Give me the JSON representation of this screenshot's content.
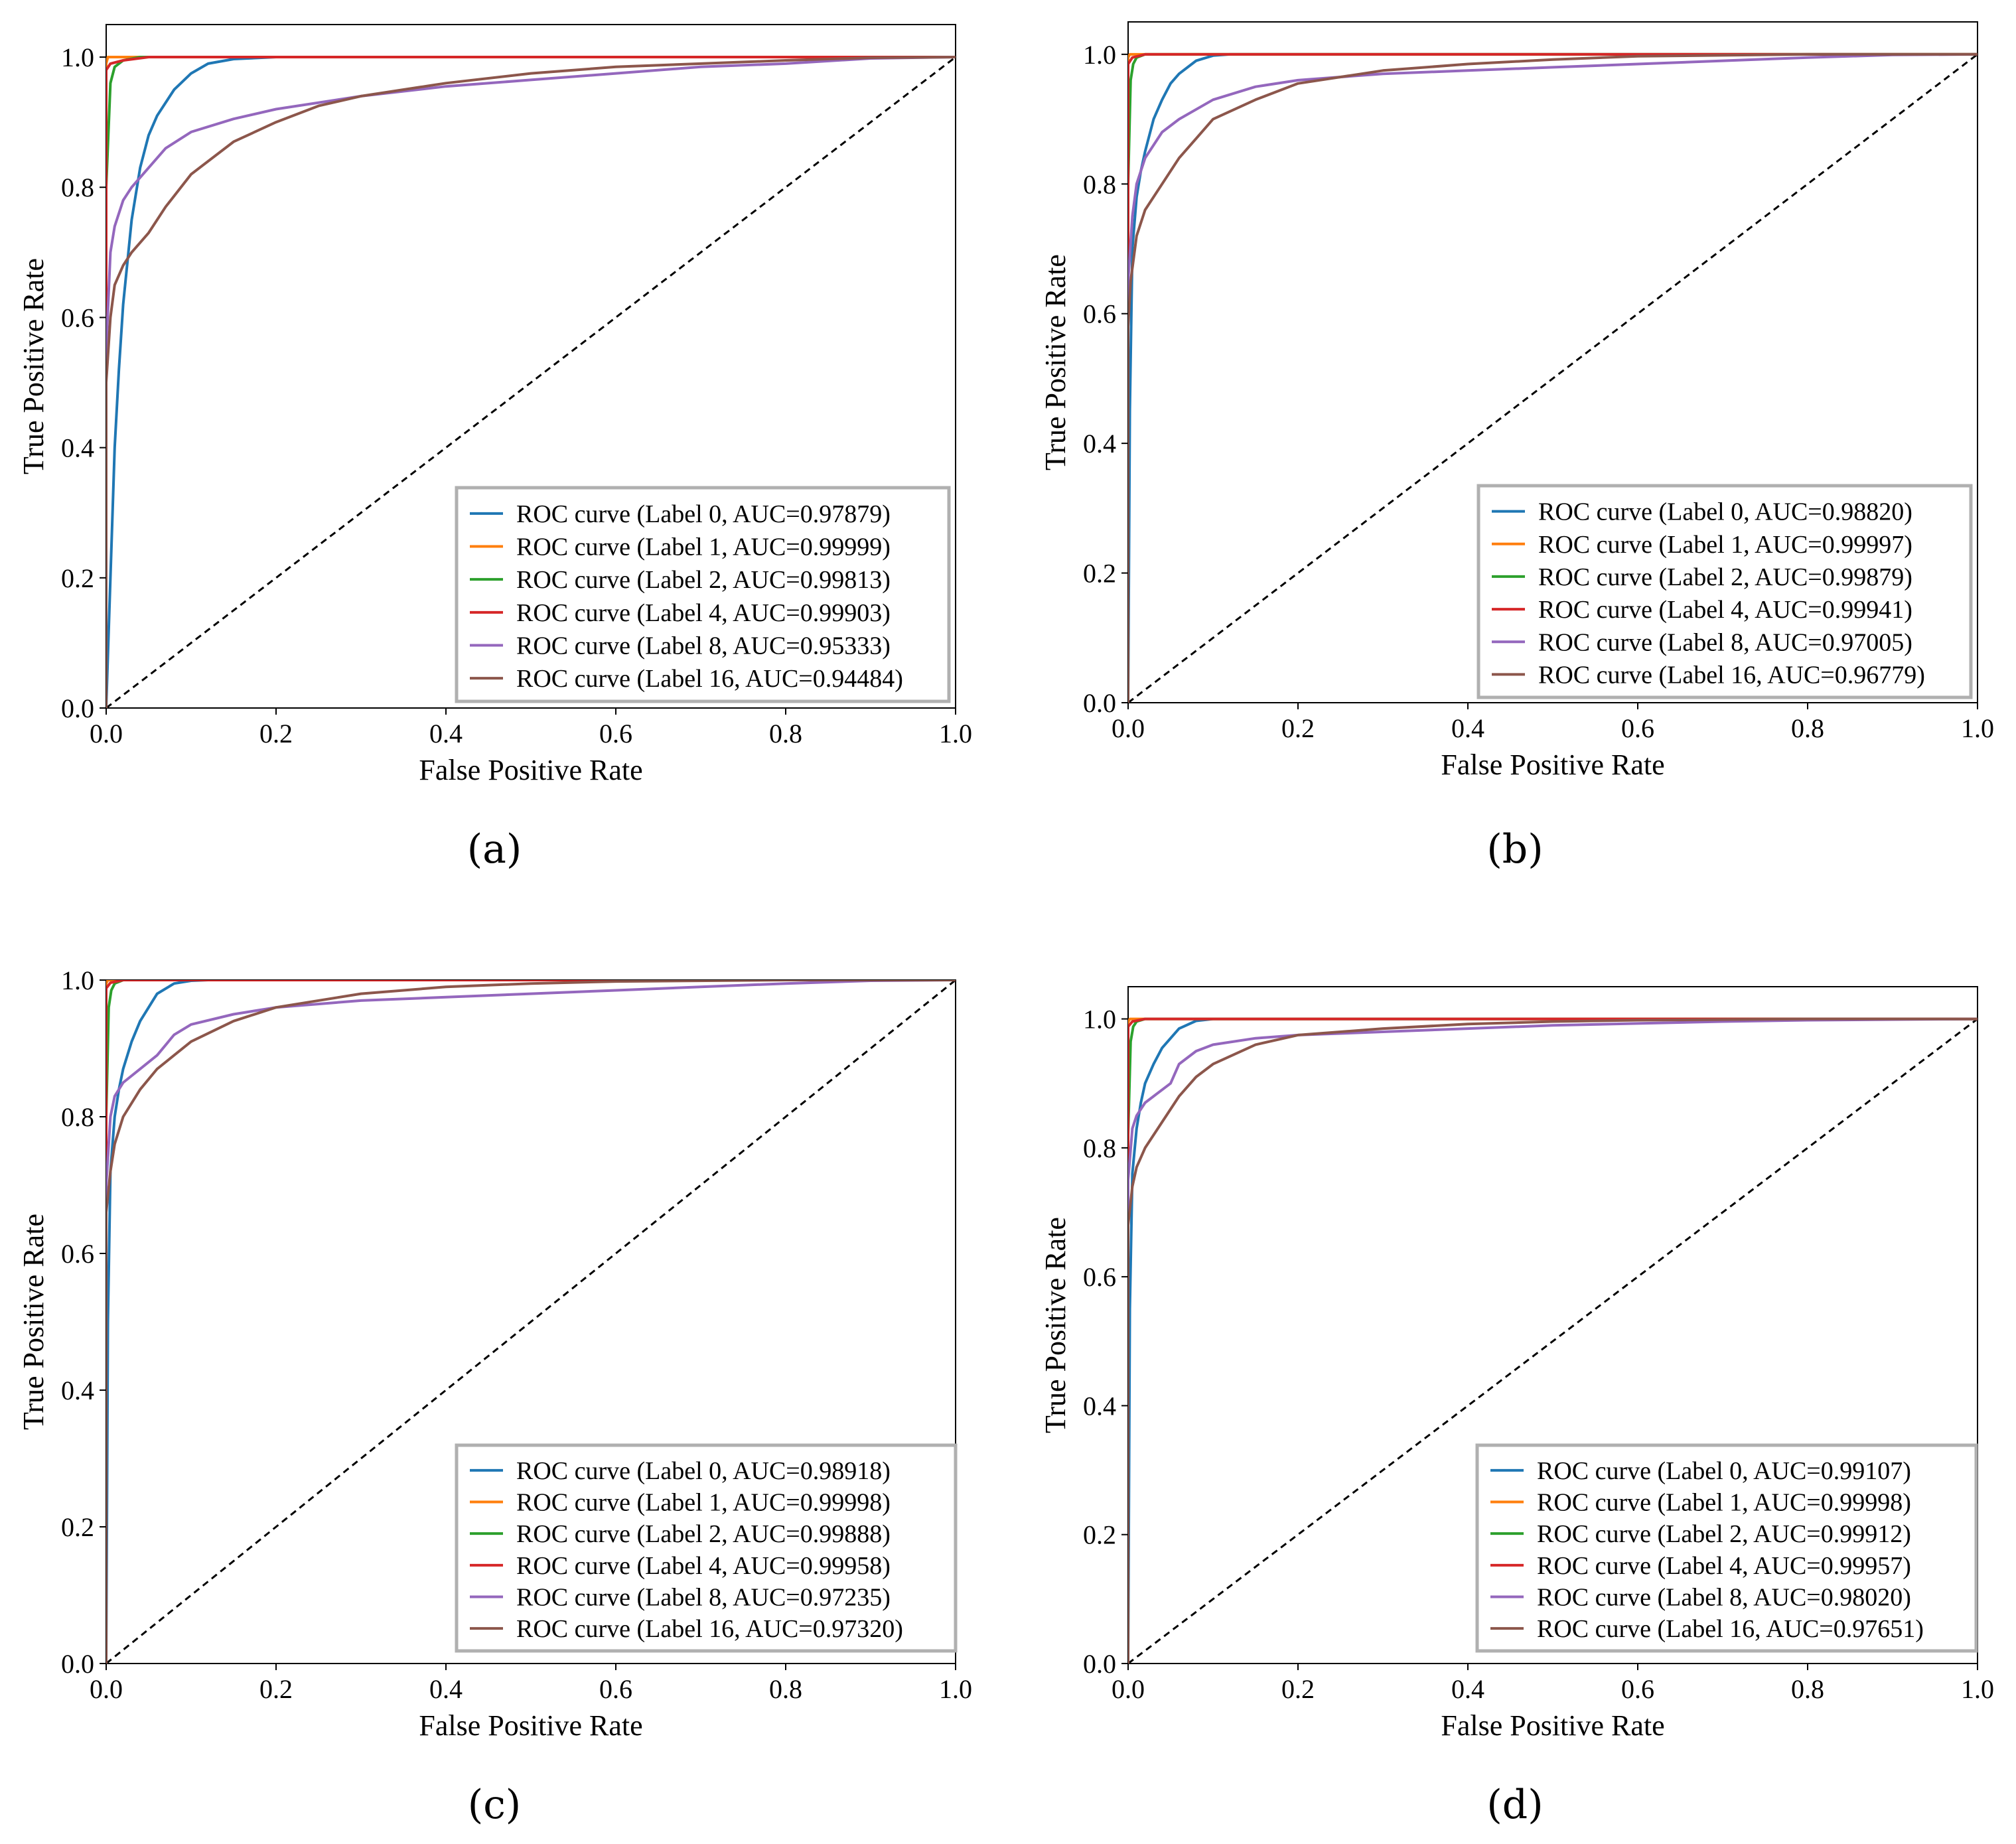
{
  "figure": {
    "captions": [
      "(a)",
      "(b)",
      "(c)",
      "(d)"
    ]
  },
  "chart_data": [
    {
      "type": "line",
      "panel": "a",
      "title": "",
      "xlabel": "False Positive Rate",
      "ylabel": "True Positive Rate",
      "xlim": [
        0.0,
        1.0
      ],
      "ylim": [
        0.0,
        1.05
      ],
      "xticks": [
        "0.0",
        "0.2",
        "0.4",
        "0.6",
        "0.8",
        "1.0"
      ],
      "yticks": [
        "0.0",
        "0.2",
        "0.4",
        "0.6",
        "0.8",
        "1.0"
      ],
      "legend_position": "lower-right",
      "series": [
        {
          "name": "ROC curve (Label 0, AUC=0.97879)",
          "color": "#1f77b4",
          "x": [
            0,
            0.005,
            0.01,
            0.015,
            0.02,
            0.03,
            0.04,
            0.05,
            0.06,
            0.08,
            0.1,
            0.12,
            0.15,
            0.2,
            1.0
          ],
          "y": [
            0,
            0.2,
            0.4,
            0.52,
            0.62,
            0.75,
            0.83,
            0.88,
            0.91,
            0.95,
            0.975,
            0.99,
            0.997,
            1.0,
            1.0
          ]
        },
        {
          "name": "ROC curve (Label 1, AUC=0.99999)",
          "color": "#ff7f0e",
          "x": [
            0,
            0.0,
            0.002,
            1.0
          ],
          "y": [
            0,
            0.99,
            1.0,
            1.0
          ]
        },
        {
          "name": "ROC curve (Label 2, AUC=0.99813)",
          "color": "#2ca02c",
          "x": [
            0,
            0.0,
            0.005,
            0.01,
            0.02,
            0.04,
            1.0
          ],
          "y": [
            0,
            0.8,
            0.96,
            0.985,
            0.995,
            1.0,
            1.0
          ]
        },
        {
          "name": "ROC curve (Label 4, AUC=0.99903)",
          "color": "#d62728",
          "x": [
            0,
            0.0,
            0.005,
            0.02,
            0.05,
            1.0
          ],
          "y": [
            0,
            0.98,
            0.99,
            0.995,
            1.0,
            1.0
          ]
        },
        {
          "name": "ROC curve (Label 8, AUC=0.95333)",
          "color": "#9467bd",
          "x": [
            0,
            0.0,
            0.005,
            0.01,
            0.02,
            0.03,
            0.05,
            0.07,
            0.1,
            0.15,
            0.2,
            0.3,
            0.4,
            0.5,
            0.6,
            0.7,
            0.8,
            0.9,
            1.0
          ],
          "y": [
            0,
            0.55,
            0.7,
            0.74,
            0.78,
            0.8,
            0.83,
            0.86,
            0.885,
            0.905,
            0.92,
            0.94,
            0.955,
            0.965,
            0.975,
            0.985,
            0.99,
            0.998,
            1.0
          ]
        },
        {
          "name": "ROC curve (Label 16, AUC=0.94484)",
          "color": "#8c564b",
          "x": [
            0,
            0.0,
            0.005,
            0.01,
            0.02,
            0.03,
            0.05,
            0.07,
            0.1,
            0.15,
            0.2,
            0.25,
            0.3,
            0.4,
            0.5,
            0.6,
            0.7,
            0.8,
            0.9,
            1.0
          ],
          "y": [
            0,
            0.5,
            0.6,
            0.65,
            0.68,
            0.7,
            0.73,
            0.77,
            0.82,
            0.87,
            0.9,
            0.925,
            0.94,
            0.96,
            0.975,
            0.985,
            0.99,
            0.995,
            0.999,
            1.0
          ]
        }
      ]
    },
    {
      "type": "line",
      "panel": "b",
      "title": "",
      "xlabel": "False Positive Rate",
      "ylabel": "True Positive Rate",
      "xlim": [
        0.0,
        1.0
      ],
      "ylim": [
        0.0,
        1.05
      ],
      "xticks": [
        "0.0",
        "0.2",
        "0.4",
        "0.6",
        "0.8",
        "1.0"
      ],
      "yticks": [
        "0.0",
        "0.2",
        "0.4",
        "0.6",
        "0.8",
        "1.0"
      ],
      "legend_position": "lower-right",
      "series": [
        {
          "name": "ROC curve (Label 0, AUC=0.98820)",
          "color": "#1f77b4",
          "x": [
            0,
            0.002,
            0.005,
            0.01,
            0.015,
            0.02,
            0.03,
            0.04,
            0.05,
            0.06,
            0.08,
            0.1,
            0.12,
            1.0
          ],
          "y": [
            0,
            0.45,
            0.7,
            0.78,
            0.82,
            0.85,
            0.9,
            0.93,
            0.955,
            0.97,
            0.99,
            0.998,
            1.0,
            1.0
          ]
        },
        {
          "name": "ROC curve (Label 1, AUC=0.99997)",
          "color": "#ff7f0e",
          "x": [
            0,
            0.0,
            0.002,
            1.0
          ],
          "y": [
            0,
            0.995,
            1.0,
            1.0
          ]
        },
        {
          "name": "ROC curve (Label 2, AUC=0.99879)",
          "color": "#2ca02c",
          "x": [
            0,
            0.0,
            0.003,
            0.006,
            0.01,
            0.02,
            1.0
          ],
          "y": [
            0,
            0.8,
            0.96,
            0.985,
            0.995,
            1.0,
            1.0
          ]
        },
        {
          "name": "ROC curve (Label 4, AUC=0.99941)",
          "color": "#d62728",
          "x": [
            0,
            0.0,
            0.005,
            0.02,
            1.0
          ],
          "y": [
            0,
            0.985,
            0.995,
            1.0,
            1.0
          ]
        },
        {
          "name": "ROC curve (Label 8, AUC=0.97005)",
          "color": "#9467bd",
          "x": [
            0,
            0.0,
            0.005,
            0.01,
            0.02,
            0.04,
            0.06,
            0.1,
            0.15,
            0.2,
            0.3,
            0.4,
            0.5,
            0.6,
            0.7,
            0.8,
            0.9,
            1.0
          ],
          "y": [
            0,
            0.65,
            0.75,
            0.8,
            0.84,
            0.88,
            0.9,
            0.93,
            0.95,
            0.96,
            0.97,
            0.975,
            0.98,
            0.985,
            0.99,
            0.995,
            0.999,
            1.0
          ]
        },
        {
          "name": "ROC curve (Label 16, AUC=0.96779)",
          "color": "#8c564b",
          "x": [
            0,
            0.0,
            0.003,
            0.01,
            0.02,
            0.04,
            0.06,
            0.08,
            0.1,
            0.15,
            0.2,
            0.3,
            0.4,
            0.5,
            0.6,
            0.8,
            1.0
          ],
          "y": [
            0,
            0.58,
            0.65,
            0.72,
            0.76,
            0.8,
            0.84,
            0.87,
            0.9,
            0.93,
            0.955,
            0.975,
            0.985,
            0.992,
            0.997,
            1.0,
            1.0
          ]
        }
      ]
    },
    {
      "type": "line",
      "panel": "c",
      "title": "",
      "xlabel": "False Positive Rate",
      "ylabel": "True Positive Rate",
      "xlim": [
        0.0,
        1.0
      ],
      "ylim": [
        0.0,
        1.0
      ],
      "xticks": [
        "0.0",
        "0.2",
        "0.4",
        "0.6",
        "0.8",
        "1.0"
      ],
      "yticks": [
        "0.0",
        "0.2",
        "0.4",
        "0.6",
        "0.8",
        "1.0"
      ],
      "legend_position": "lower-right",
      "series": [
        {
          "name": "ROC curve (Label 0, AUC=0.98918)",
          "color": "#1f77b4",
          "x": [
            0,
            0.002,
            0.005,
            0.01,
            0.015,
            0.02,
            0.03,
            0.04,
            0.05,
            0.06,
            0.08,
            0.1,
            0.12,
            1.0
          ],
          "y": [
            0,
            0.5,
            0.72,
            0.8,
            0.84,
            0.87,
            0.91,
            0.94,
            0.96,
            0.98,
            0.995,
            0.999,
            1.0,
            1.0
          ]
        },
        {
          "name": "ROC curve (Label 1, AUC=0.99998)",
          "color": "#ff7f0e",
          "x": [
            0,
            0.0,
            0.002,
            1.0
          ],
          "y": [
            0,
            0.995,
            1.0,
            1.0
          ]
        },
        {
          "name": "ROC curve (Label 2, AUC=0.99888)",
          "color": "#2ca02c",
          "x": [
            0,
            0.0,
            0.003,
            0.006,
            0.01,
            0.02,
            1.0
          ],
          "y": [
            0,
            0.8,
            0.96,
            0.985,
            0.995,
            1.0,
            1.0
          ]
        },
        {
          "name": "ROC curve (Label 4, AUC=0.99958)",
          "color": "#d62728",
          "x": [
            0,
            0.0,
            0.005,
            0.02,
            1.0
          ],
          "y": [
            0,
            0.988,
            0.996,
            1.0,
            1.0
          ]
        },
        {
          "name": "ROC curve (Label 8, AUC=0.97235)",
          "color": "#9467bd",
          "x": [
            0,
            0.0,
            0.005,
            0.01,
            0.02,
            0.04,
            0.06,
            0.08,
            0.1,
            0.15,
            0.2,
            0.3,
            0.4,
            0.5,
            0.6,
            0.7,
            0.8,
            0.9,
            1.0
          ],
          "y": [
            0,
            0.7,
            0.8,
            0.83,
            0.85,
            0.87,
            0.89,
            0.92,
            0.935,
            0.95,
            0.96,
            0.97,
            0.975,
            0.98,
            0.985,
            0.99,
            0.995,
            0.999,
            1.0
          ]
        },
        {
          "name": "ROC curve (Label 16, AUC=0.97320)",
          "color": "#8c564b",
          "x": [
            0,
            0.0,
            0.005,
            0.01,
            0.02,
            0.04,
            0.06,
            0.08,
            0.1,
            0.15,
            0.2,
            0.3,
            0.4,
            0.5,
            0.6,
            0.8,
            1.0
          ],
          "y": [
            0,
            0.66,
            0.72,
            0.76,
            0.8,
            0.84,
            0.87,
            0.89,
            0.91,
            0.94,
            0.96,
            0.98,
            0.99,
            0.995,
            0.998,
            1.0,
            1.0
          ]
        }
      ]
    },
    {
      "type": "line",
      "panel": "d",
      "title": "",
      "xlabel": "False Positive Rate",
      "ylabel": "True Positive Rate",
      "xlim": [
        0.0,
        1.0
      ],
      "ylim": [
        0.0,
        1.05
      ],
      "xticks": [
        "0.0",
        "0.2",
        "0.4",
        "0.6",
        "0.8",
        "1.0"
      ],
      "yticks": [
        "0.0",
        "0.2",
        "0.4",
        "0.6",
        "0.8",
        "1.0"
      ],
      "legend_position": "lower-right",
      "series": [
        {
          "name": "ROC curve (Label 0, AUC=0.99107)",
          "color": "#1f77b4",
          "x": [
            0,
            0.002,
            0.005,
            0.01,
            0.015,
            0.02,
            0.03,
            0.04,
            0.05,
            0.06,
            0.08,
            0.1,
            1.0
          ],
          "y": [
            0,
            0.55,
            0.76,
            0.83,
            0.87,
            0.9,
            0.93,
            0.955,
            0.97,
            0.985,
            0.997,
            1.0,
            1.0
          ]
        },
        {
          "name": "ROC curve (Label 1, AUC=0.99998)",
          "color": "#ff7f0e",
          "x": [
            0,
            0.0,
            0.002,
            1.0
          ],
          "y": [
            0,
            0.995,
            1.0,
            1.0
          ]
        },
        {
          "name": "ROC curve (Label 2, AUC=0.99912)",
          "color": "#2ca02c",
          "x": [
            0,
            0.0,
            0.003,
            0.006,
            0.01,
            0.02,
            1.0
          ],
          "y": [
            0,
            0.82,
            0.965,
            0.988,
            0.996,
            1.0,
            1.0
          ]
        },
        {
          "name": "ROC curve (Label 4, AUC=0.99957)",
          "color": "#d62728",
          "x": [
            0,
            0.0,
            0.005,
            0.02,
            1.0
          ],
          "y": [
            0,
            0.988,
            0.996,
            1.0,
            1.0
          ]
        },
        {
          "name": "ROC curve (Label 8, AUC=0.98020)",
          "color": "#9467bd",
          "x": [
            0,
            0.0,
            0.005,
            0.01,
            0.02,
            0.03,
            0.05,
            0.06,
            0.08,
            0.1,
            0.15,
            0.2,
            0.3,
            0.4,
            0.5,
            0.6,
            0.7,
            0.8,
            0.9,
            1.0
          ],
          "y": [
            0,
            0.75,
            0.83,
            0.85,
            0.87,
            0.88,
            0.9,
            0.93,
            0.95,
            0.96,
            0.97,
            0.975,
            0.98,
            0.985,
            0.99,
            0.993,
            0.996,
            0.998,
            0.999,
            1.0
          ]
        },
        {
          "name": "ROC curve (Label 16, AUC=0.97651)",
          "color": "#8c564b",
          "x": [
            0,
            0.0,
            0.005,
            0.01,
            0.02,
            0.04,
            0.06,
            0.08,
            0.1,
            0.15,
            0.2,
            0.3,
            0.4,
            0.5,
            0.6,
            0.8,
            1.0
          ],
          "y": [
            0,
            0.68,
            0.74,
            0.77,
            0.8,
            0.84,
            0.88,
            0.91,
            0.93,
            0.96,
            0.975,
            0.985,
            0.992,
            0.996,
            0.998,
            1.0,
            1.0
          ]
        }
      ]
    }
  ]
}
